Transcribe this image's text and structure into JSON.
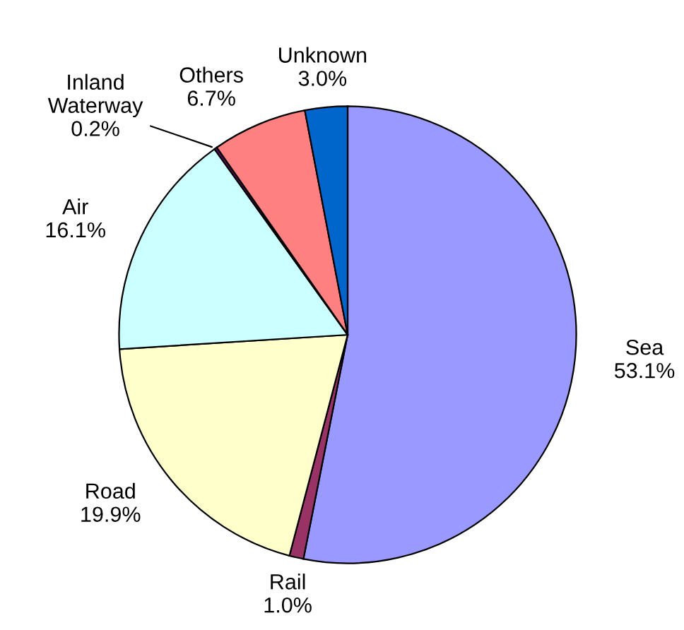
{
  "chart_data": {
    "type": "pie",
    "categories": [
      "Sea",
      "Rail",
      "Road",
      "Air",
      "Inland Waterway",
      "Others",
      "Unknown"
    ],
    "values": [
      53.1,
      1.0,
      19.9,
      16.1,
      0.2,
      6.7,
      3.0
    ],
    "value_labels": [
      "53.1%",
      "1.0%",
      "19.9%",
      "16.1%",
      "0.2%",
      "6.7%",
      "3.0%"
    ],
    "colors": [
      "#9999ff",
      "#993366",
      "#ffffcc",
      "#ccffff",
      "#660066",
      "#ff8080",
      "#0066cc"
    ],
    "legend": false
  }
}
